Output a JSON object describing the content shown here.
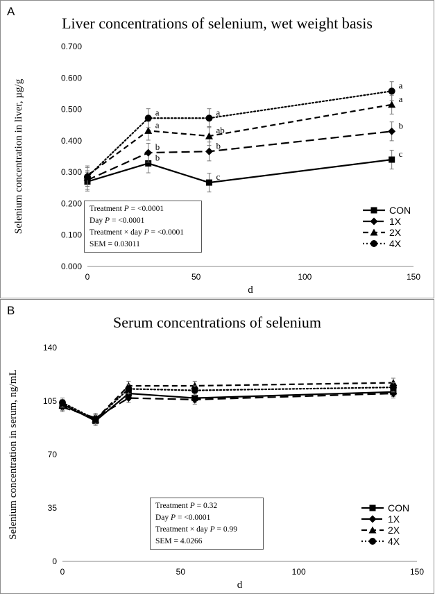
{
  "chart_data": [
    {
      "type": "line",
      "panel_label": "A",
      "title": "Liver concentrations of selenium, wet weight basis",
      "xlabel": "d",
      "ylabel": "Selenium concentration in liver, µg/g",
      "xlim": [
        0,
        150
      ],
      "ylim": [
        0,
        0.7
      ],
      "xticks": [
        0,
        50,
        100,
        150
      ],
      "yticks": [
        "0.000",
        "0.100",
        "0.200",
        "0.300",
        "0.400",
        "0.500",
        "0.600",
        "0.700"
      ],
      "x": [
        0,
        28,
        56,
        140
      ],
      "series": [
        {
          "name": "CON",
          "marker": "square",
          "dash": "solid",
          "values": [
            0.27,
            0.328,
            0.267,
            0.34
          ],
          "errors": [
            0.03,
            0.03,
            0.03,
            0.03
          ],
          "letters": [
            "",
            "b",
            "c",
            "c"
          ]
        },
        {
          "name": "1X",
          "marker": "diamond",
          "dash": "long-dash",
          "values": [
            0.275,
            0.362,
            0.366,
            0.43
          ],
          "errors": [
            0.03,
            0.03,
            0.03,
            0.03
          ],
          "letters": [
            "",
            "b",
            "b",
            "b"
          ]
        },
        {
          "name": "2X",
          "marker": "triangle",
          "dash": "dash",
          "values": [
            0.29,
            0.432,
            0.415,
            0.515
          ],
          "errors": [
            0.03,
            0.03,
            0.03,
            0.03
          ],
          "letters": [
            "",
            "a",
            "ab",
            "a"
          ]
        },
        {
          "name": "4X",
          "marker": "circle",
          "dash": "dot",
          "values": [
            0.285,
            0.472,
            0.472,
            0.558
          ],
          "errors": [
            0.03,
            0.03,
            0.03,
            0.03
          ],
          "letters": [
            "",
            "a",
            "a",
            "a"
          ]
        }
      ],
      "legend_position": "bottom-right",
      "stats": {
        "treatment_label": "Treatment ",
        "p_label": "P",
        "treatment_value": " = <0.0001",
        "day_label": "Day ",
        "day_value": " = <0.0001",
        "interaction_label": "Treatment × day ",
        "interaction_value": " = <0.0001",
        "sem": "SEM = 0.03011"
      }
    },
    {
      "type": "line",
      "panel_label": "B",
      "title": "Serum concentrations of selenium",
      "xlabel": "d",
      "ylabel": "Selenium concentration in serum, ng/mL",
      "xlim": [
        0,
        150
      ],
      "ylim": [
        0,
        140
      ],
      "xticks": [
        0,
        50,
        100,
        150
      ],
      "yticks": [
        "0",
        "35",
        "70",
        "105",
        "140"
      ],
      "x": [
        0,
        14,
        28,
        56,
        140
      ],
      "series": [
        {
          "name": "CON",
          "marker": "square",
          "dash": "solid",
          "values": [
            103,
            92,
            110,
            107,
            111
          ],
          "errors": [
            3,
            3,
            3,
            3,
            3
          ]
        },
        {
          "name": "1X",
          "marker": "diamond",
          "dash": "long-dash",
          "values": [
            101,
            94,
            107,
            106,
            110
          ],
          "errors": [
            3,
            3,
            3,
            3,
            3
          ]
        },
        {
          "name": "2X",
          "marker": "triangle",
          "dash": "dash",
          "values": [
            102,
            93,
            115,
            115,
            117
          ],
          "errors": [
            3,
            3,
            3,
            3,
            3
          ]
        },
        {
          "name": "4X",
          "marker": "circle",
          "dash": "dot",
          "values": [
            104,
            93,
            113,
            112,
            114
          ],
          "errors": [
            3,
            3,
            3,
            3,
            3
          ]
        }
      ],
      "legend_position": "bottom-right",
      "stats": {
        "treatment_label": "Treatment ",
        "p_label": "P",
        "treatment_value": " = 0.32",
        "day_label": "Day ",
        "day_value": " = <0.0001",
        "interaction_label": "Treatment × day ",
        "interaction_value": " = 0.99",
        "sem": "SEM = 4.0266"
      }
    }
  ]
}
